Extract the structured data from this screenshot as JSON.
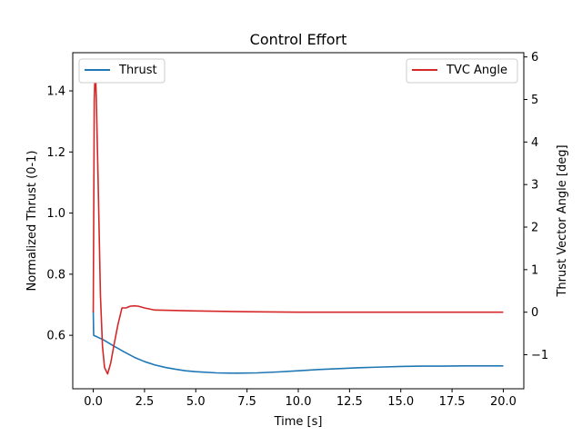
{
  "chart_data": {
    "type": "line",
    "title": "Control Effort",
    "xlabel": "Time [s]",
    "ylabel": "Normalized Thrust (0-1)",
    "ylabel_right": "Thrust Vector Angle [deg]",
    "xlim": [
      -1.0,
      21.0
    ],
    "ylim": [
      0.425,
      1.525
    ],
    "ylim_right": [
      -1.8,
      6.1
    ],
    "x_ticks": [
      0.0,
      2.5,
      5.0,
      7.5,
      10.0,
      12.5,
      15.0,
      17.5,
      20.0
    ],
    "x_tick_labels": [
      "0.0",
      "2.5",
      "5.0",
      "7.5",
      "10.0",
      "12.5",
      "15.0",
      "17.5",
      "20.0"
    ],
    "y_ticks": [
      0.6,
      0.8,
      1.0,
      1.2,
      1.4
    ],
    "y_tick_labels": [
      "0.6",
      "0.8",
      "1.0",
      "1.2",
      "1.4"
    ],
    "y_ticks_right": [
      -1,
      0,
      1,
      2,
      3,
      4,
      5,
      6
    ],
    "y_tick_labels_right": [
      "−1",
      "0",
      "1",
      "2",
      "3",
      "4",
      "5",
      "6"
    ],
    "grid": false,
    "series": [
      {
        "name": "Thrust",
        "axis": "left",
        "color": "#1f77b4",
        "legend_placement": "top-left",
        "x": [
          0,
          0.02,
          0.5,
          1.0,
          1.5,
          2.0,
          2.5,
          3.0,
          3.5,
          4.0,
          4.5,
          5.0,
          6.0,
          7.0,
          8.0,
          9.0,
          10.0,
          11.0,
          12.0,
          13.0,
          14.0,
          15.0,
          16.0,
          17.0,
          18.0,
          19.0,
          20.0
        ],
        "y": [
          0.68,
          0.6,
          0.585,
          0.565,
          0.546,
          0.528,
          0.514,
          0.503,
          0.495,
          0.489,
          0.484,
          0.481,
          0.477,
          0.476,
          0.477,
          0.48,
          0.484,
          0.488,
          0.491,
          0.494,
          0.496,
          0.498,
          0.499,
          0.499,
          0.5,
          0.5,
          0.5
        ]
      },
      {
        "name": "TVC Angle",
        "axis": "right",
        "color": "#d62728",
        "legend_placement": "top-right",
        "x": [
          0,
          0.05,
          0.1,
          0.15,
          0.25,
          0.35,
          0.45,
          0.55,
          0.7,
          0.85,
          1.0,
          1.2,
          1.4,
          1.6,
          1.8,
          2.0,
          2.2,
          2.5,
          3.0,
          4.0,
          5.0,
          7.5,
          10.0,
          12.5,
          15.0,
          17.5,
          20.0
        ],
        "y": [
          0.0,
          5.0,
          5.8,
          5.0,
          2.8,
          0.4,
          -0.8,
          -1.3,
          -1.45,
          -1.2,
          -0.8,
          -0.3,
          0.1,
          0.1,
          0.14,
          0.15,
          0.14,
          0.1,
          0.05,
          0.04,
          0.03,
          0.01,
          0.0,
          0.0,
          0.0,
          0.0,
          0.0
        ]
      }
    ]
  }
}
